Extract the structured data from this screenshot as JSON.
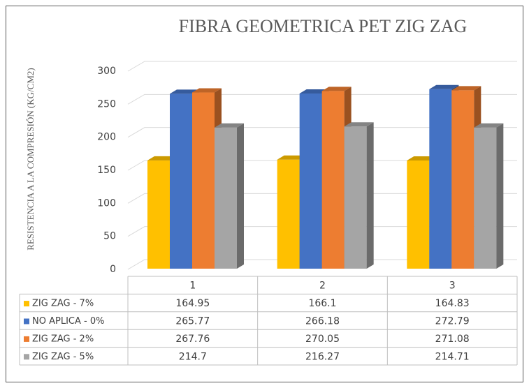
{
  "chart_data": {
    "type": "bar",
    "title": "FIBRA GEOMETRICA PET ZIG ZAG",
    "y_label": "RESISTENCIA A LA COMPRESIÓN (KG/CM2)",
    "categories": [
      "1",
      "2",
      "3"
    ],
    "series": [
      {
        "name": "ZIG ZAG - 7%",
        "color": "#FFC000",
        "values": [
          164.95,
          166.1,
          164.83
        ]
      },
      {
        "name": "NO APLICA - 0%",
        "color": "#4472C4",
        "values": [
          265.77,
          266.18,
          272.79
        ]
      },
      {
        "name": "ZIG ZAG - 2%",
        "color": "#ED7D31",
        "values": [
          267.76,
          270.05,
          271.08
        ]
      },
      {
        "name": "ZIG ZAG - 5%",
        "color": "#A5A5A5",
        "values": [
          214.7,
          216.27,
          214.71
        ]
      }
    ],
    "ylim": [
      0,
      300
    ],
    "yticks": [
      0,
      50,
      100,
      150,
      200,
      250,
      300
    ],
    "grid": true,
    "data_table": true
  }
}
